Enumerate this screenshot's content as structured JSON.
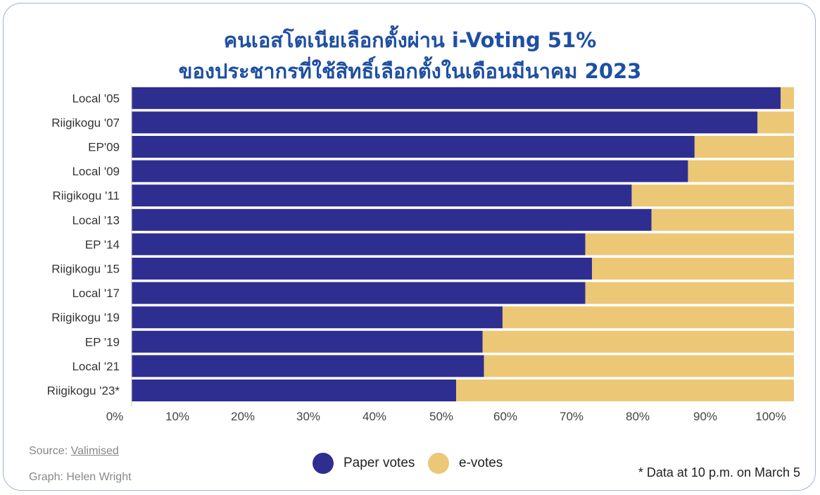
{
  "title_line1": "คนเอสโตเนียเลือกตั้งผ่าน i-Voting 51%",
  "title_line2": "ของประชากรที่ใช้สิทธิ์เลือกตั้งในเดือนมีนาคม 2023",
  "source_prefix": "Source: ",
  "source_link": "Valimised",
  "graph_credit": "Graph: Helen Wright",
  "footnote": "* Data at 10 p.m. on March 5",
  "colors": {
    "paper": "#2e2e91",
    "evotes": "#ecc775",
    "title": "#1e4fa3"
  },
  "legend": [
    {
      "name": "Paper votes",
      "color": "#2e2e91"
    },
    {
      "name": "e-votes",
      "color": "#ecc775"
    }
  ],
  "chart_data": {
    "type": "bar",
    "orientation": "horizontal",
    "stacked": true,
    "categories": [
      "Local '05",
      "Riigikogu '07",
      "EP'09",
      "Local '09",
      "Riigikogu '11",
      "Local '13",
      "EP '14",
      "Riigikogu '15",
      "Local '17",
      "Riigikogu '19",
      "EP '19",
      "Local '21",
      "Riigikogu '23*"
    ],
    "series": [
      {
        "name": "Paper votes",
        "color": "#2e2e91",
        "values": [
          98,
          94.5,
          85,
          84,
          75.5,
          78.5,
          68.5,
          69.5,
          68.5,
          56,
          53,
          53.2,
          49
        ]
      },
      {
        "name": "e-votes",
        "color": "#ecc775",
        "values": [
          2,
          5.5,
          15,
          16,
          24.5,
          21.5,
          31.5,
          30.5,
          31.5,
          44,
          47,
          46.8,
          51
        ]
      }
    ],
    "x_ticks": [
      "0%",
      "10%",
      "20%",
      "30%",
      "40%",
      "50%",
      "60%",
      "70%",
      "80%",
      "90%",
      "100%"
    ],
    "xlim": [
      0,
      100
    ],
    "legend_position": "bottom-center",
    "grid": false
  }
}
